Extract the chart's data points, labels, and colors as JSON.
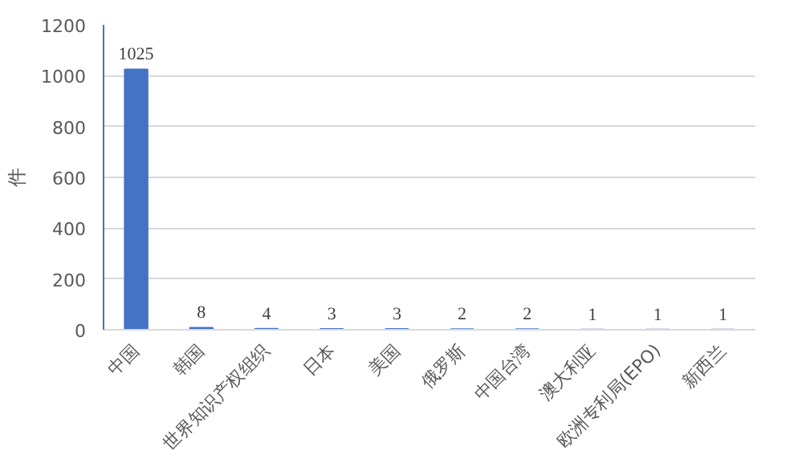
{
  "chart_data": {
    "type": "bar",
    "ylabel": "件",
    "categories": [
      "中国",
      "韩国",
      "世界知识产权组织",
      "日本",
      "美国",
      "俄罗斯",
      "中国台湾",
      "澳大利亚",
      "欧洲专利局(EPO)",
      "新西兰"
    ],
    "values": [
      1025,
      8,
      4,
      3,
      3,
      2,
      2,
      1,
      1,
      1
    ],
    "color": "#4472c4",
    "ylim": [
      0,
      1200
    ],
    "yticks": [
      0,
      200,
      400,
      600,
      800,
      1000,
      1200
    ],
    "grid": "y",
    "data_labels": true
  }
}
